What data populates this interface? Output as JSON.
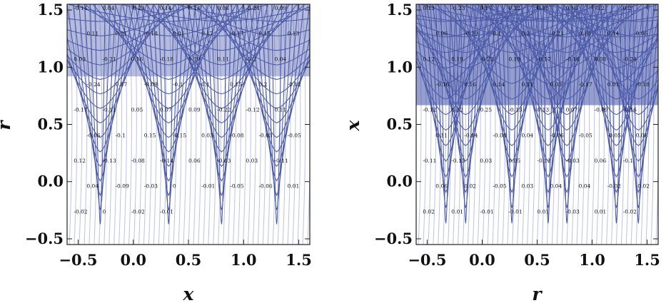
{
  "figure": {
    "panel_count": 2,
    "layout": "side-by-side"
  },
  "chart_data": [
    {
      "type": "contour",
      "panel": "left",
      "xlabel": "x",
      "ylabel": "r",
      "xlim": [
        -0.6,
        1.6
      ],
      "ylim": [
        -0.55,
        1.55
      ],
      "xticks": [
        "-0.5",
        "0.0",
        "0.5",
        "1.0",
        "1.5"
      ],
      "yticks": [
        "-0.5",
        "0.0",
        "0.5",
        "1.0",
        "1.5"
      ],
      "line_color": "#4b5aa8",
      "fill_color": "#3e4fa6",
      "contour_labels": [
        "-0.14",
        "0.04",
        "-0.23",
        "0.14",
        "0.14",
        "0.06",
        "-0.24",
        "0.09",
        "0.11",
        "0.21",
        "-0.18",
        "0.01",
        "0.17",
        "-0.17",
        "0.15",
        "0.13",
        "0.03",
        "-0.21",
        "0.16",
        "-0.18",
        "0.19",
        "0.11",
        "-0.2",
        "0.04",
        "-0.24",
        "0.17",
        "-0.09",
        "-0.1",
        "0.1",
        "0.15",
        "0.2",
        "-0.12",
        "-0.17",
        "-0.11",
        "0.05",
        "0.07",
        "0.09",
        "-0.22",
        "-0.12",
        "0.11",
        "-0.06",
        "-0.1",
        "0.15",
        "-0.15",
        "0.03",
        "-0.08",
        "-0.03",
        "-0.05",
        "0.12",
        "-0.13",
        "-0.08",
        "-0.14",
        "0.06",
        "-0.03",
        "0.03",
        "-0.11",
        "0.04",
        "-0.09",
        "-0.03",
        "0",
        "-0.01",
        "-0.05",
        "-0.06",
        "0.01",
        "-0.02",
        "0",
        "-0.02",
        "-0.01"
      ]
    },
    {
      "type": "contour",
      "panel": "right",
      "xlabel": "r",
      "ylabel": "x",
      "xlim": [
        -0.6,
        1.6
      ],
      "ylim": [
        -0.55,
        1.55
      ],
      "xticks": [
        "-0.5",
        "0.0",
        "0.5",
        "1.0",
        "1.5"
      ],
      "yticks": [
        "-0.5",
        "0.0",
        "0.5",
        "1.0",
        "1.5"
      ],
      "line_color": "#4b5aa8",
      "fill_color": "#3e4fa6",
      "contour_labels": [
        "0.13",
        "-0.23",
        "0.17",
        "0.22",
        "0.15",
        "0.16",
        "-0.2",
        "0.2",
        "0.06",
        "-0.19",
        "0.1",
        "0.2",
        "-0.21",
        "0.18",
        "0.14",
        "0.06",
        "0.12",
        "0.19",
        "-0.22",
        "0.19",
        "-0.17",
        "-0.16",
        "0.08",
        "-0.24",
        "-0.16",
        "0.16",
        "0.14",
        "0.11",
        "0.03",
        "-0.17",
        "0.01",
        "-0.18",
        "-0.12",
        "0.12",
        "0.25",
        "-0.13",
        "0.13",
        "0.07",
        "-0.09",
        "-0.16",
        "0.11",
        "-0.04",
        "-0.08",
        "0.04",
        "-0.06",
        "-0.05",
        "-0.05",
        "0.08",
        "-0.11",
        "-0.15",
        "0.03",
        "0.05",
        "-0.12",
        "-0.03",
        "0.06",
        "-0.1",
        "0.06",
        "0.02",
        "-0.05",
        "0.03",
        "0.04",
        "0.04",
        "-0.02",
        "-0.02",
        "0.02",
        "0.01",
        "-0.01",
        "-0.01",
        "0.01",
        "-0.03",
        "0.01",
        "-0.02"
      ]
    }
  ]
}
